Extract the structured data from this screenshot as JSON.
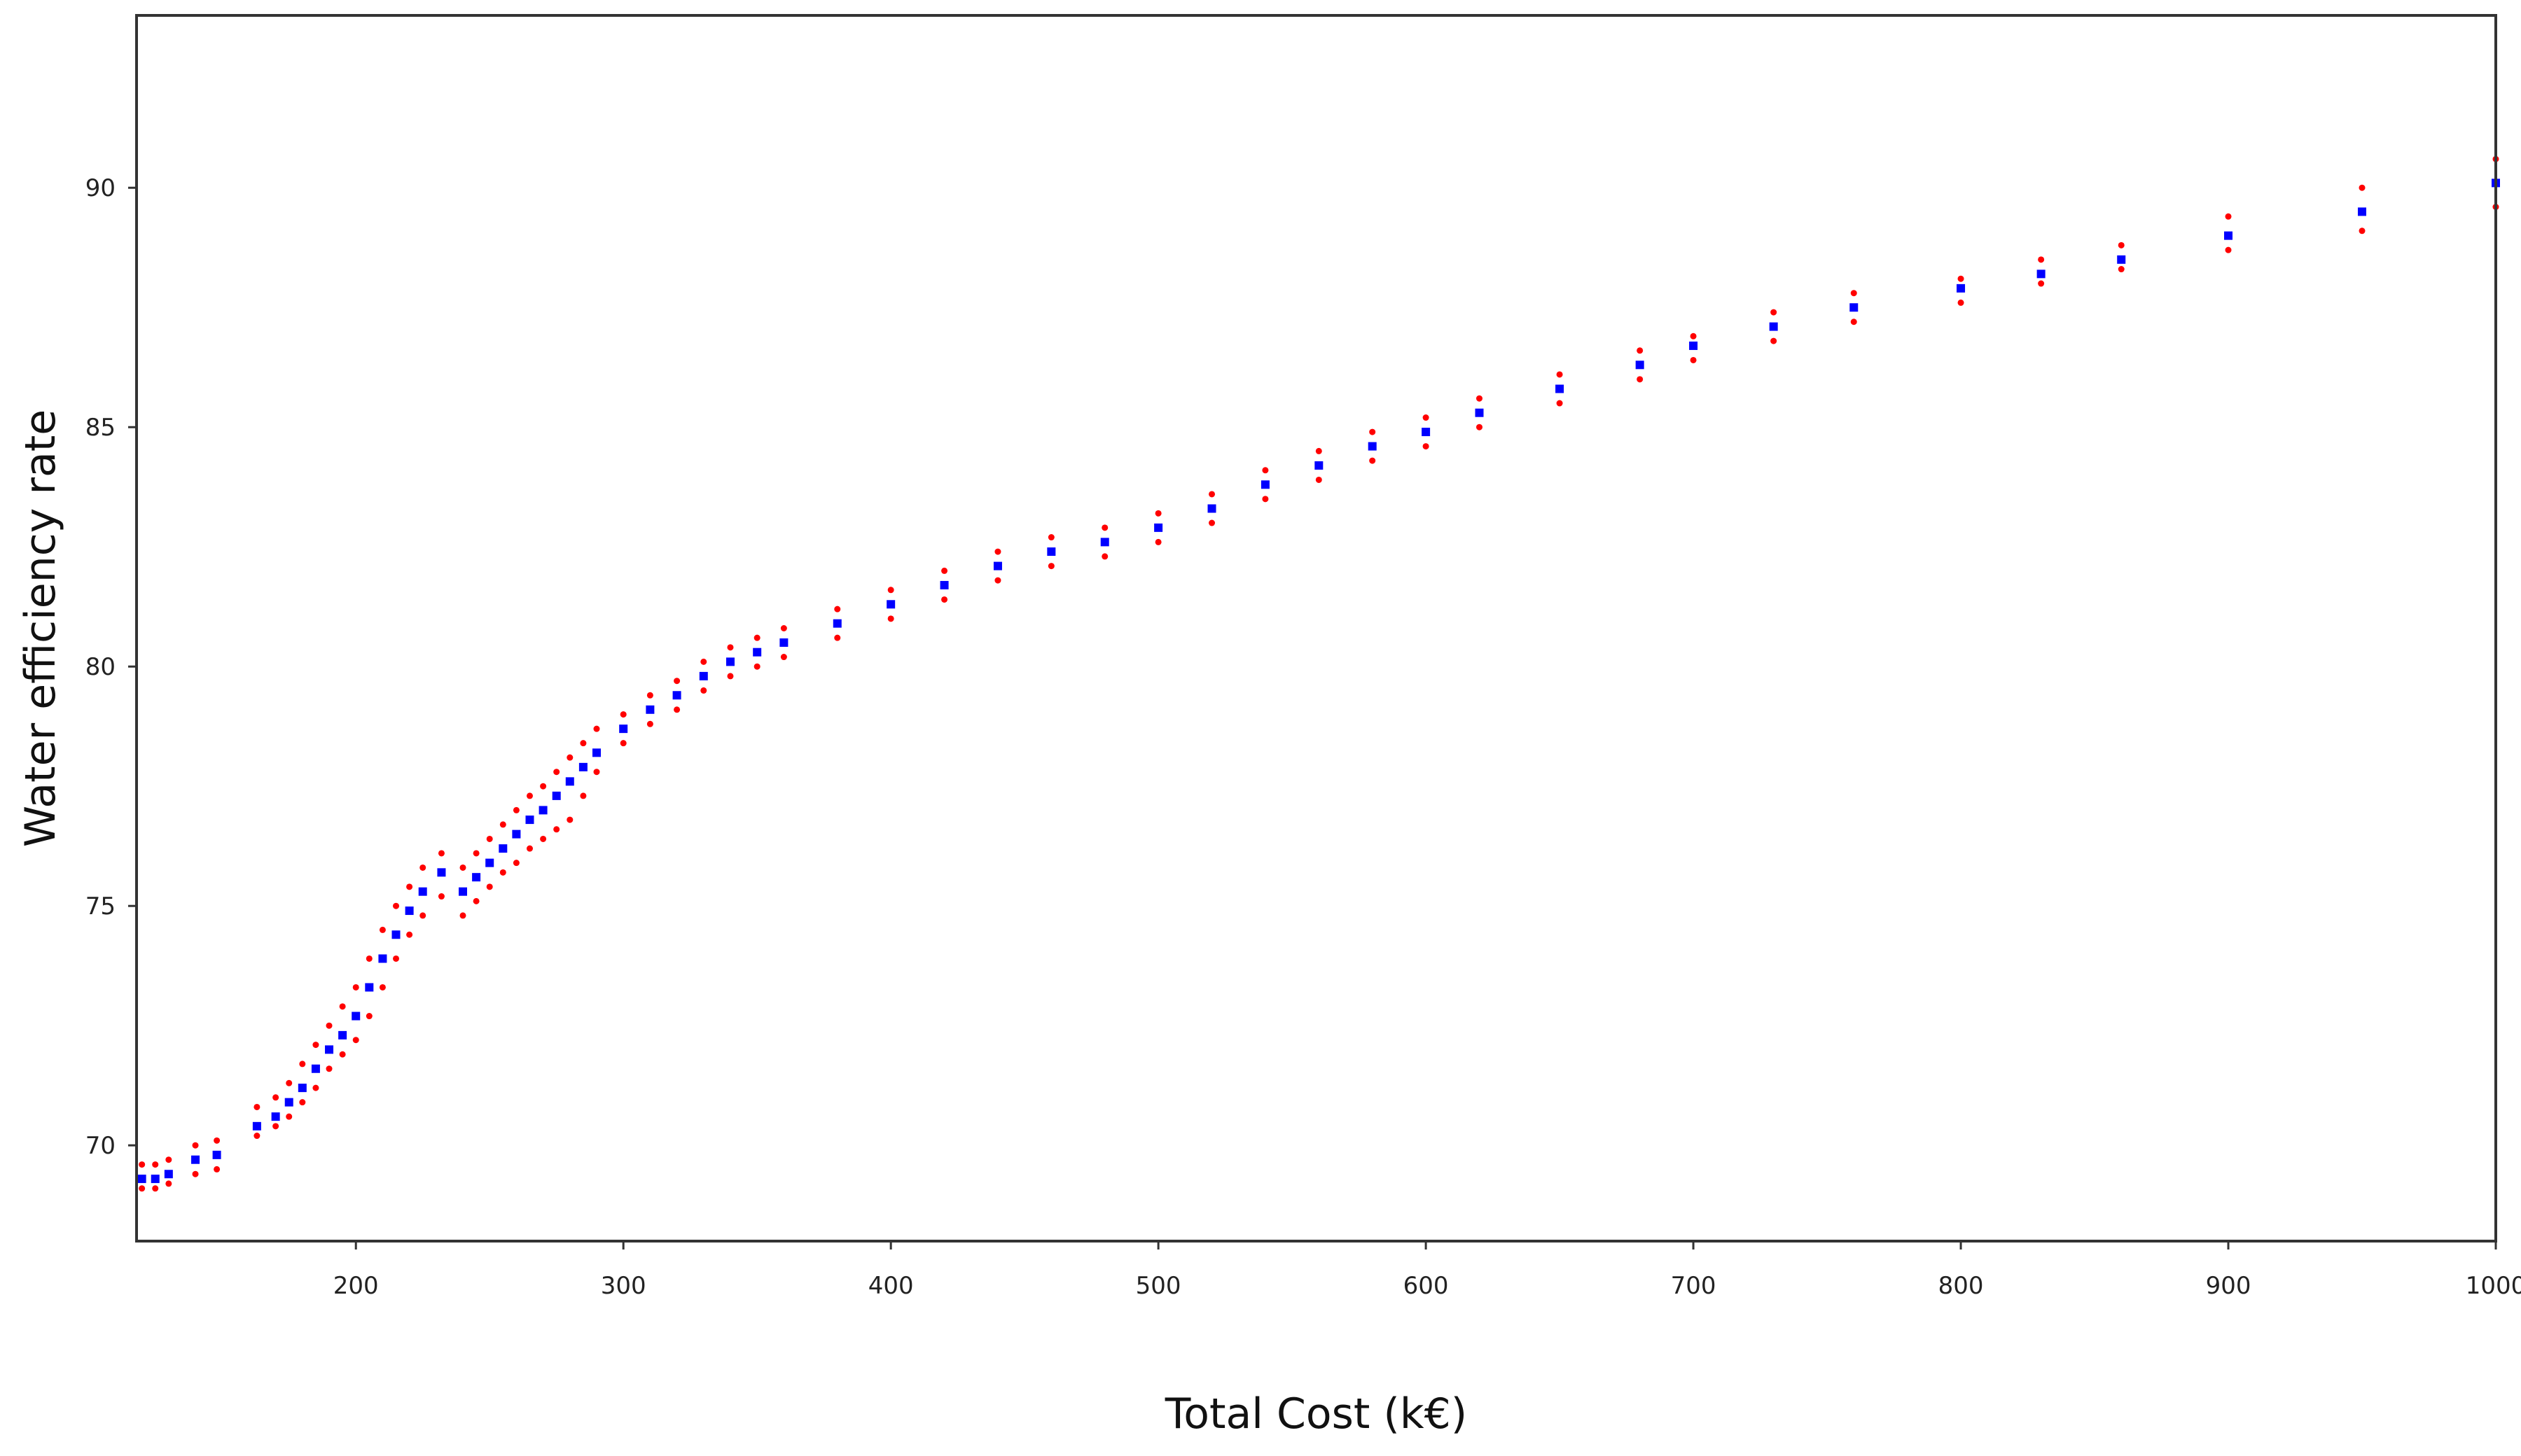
{
  "colors": {
    "background": "#ffffff",
    "frame": "#333333",
    "center_series": "#0000ff",
    "bound_series": "#ff0000"
  },
  "chart_data": {
    "type": "scatter",
    "title": "",
    "xlabel": "Total Cost (k€)",
    "ylabel": "Water efficiency rate",
    "xlim": [
      118,
      1000
    ],
    "ylim": [
      68.0,
      93.6
    ],
    "xticks": [
      200,
      300,
      400,
      500,
      600,
      700,
      800,
      900,
      1000
    ],
    "yticks": [
      70,
      75,
      80,
      85,
      90
    ],
    "grid": false,
    "legend": "none",
    "series": [
      {
        "marker": "square",
        "color": "#0000ff",
        "x": [
          120,
          125,
          130,
          140,
          148,
          163,
          170,
          175,
          180,
          185,
          190,
          195,
          200,
          205,
          210,
          215,
          220,
          225,
          232,
          240,
          245,
          250,
          255,
          260,
          265,
          270,
          275,
          280,
          285,
          290,
          300,
          310,
          320,
          330,
          340,
          350,
          360,
          380,
          400,
          420,
          440,
          460,
          480,
          500,
          520,
          540,
          560,
          580,
          600,
          620,
          650,
          680,
          700,
          730,
          760,
          800,
          830,
          860,
          900,
          950,
          1000
        ],
        "y": [
          69.3,
          69.3,
          69.4,
          69.7,
          69.8,
          70.4,
          70.6,
          70.9,
          71.2,
          71.6,
          72.0,
          72.3,
          72.7,
          73.3,
          73.9,
          74.4,
          74.9,
          75.3,
          75.7,
          75.3,
          75.6,
          75.9,
          76.2,
          76.5,
          76.8,
          77.0,
          77.3,
          77.6,
          77.9,
          78.2,
          78.7,
          79.1,
          79.4,
          79.8,
          80.1,
          80.3,
          80.5,
          80.9,
          81.3,
          81.7,
          82.1,
          82.4,
          82.6,
          82.9,
          83.3,
          83.8,
          84.2,
          84.6,
          84.9,
          85.3,
          85.8,
          86.3,
          86.7,
          87.1,
          87.5,
          87.9,
          88.2,
          88.5,
          89.0,
          89.5,
          90.1
        ]
      },
      {
        "marker": "dot",
        "color": "#ff0000",
        "x": [
          120,
          125,
          130,
          140,
          148,
          163,
          170,
          175,
          180,
          185,
          190,
          195,
          200,
          205,
          210,
          215,
          220,
          225,
          232,
          240,
          245,
          250,
          255,
          260,
          265,
          270,
          275,
          280,
          285,
          290,
          300,
          310,
          320,
          330,
          340,
          350,
          360,
          380,
          400,
          420,
          440,
          460,
          480,
          500,
          520,
          540,
          560,
          580,
          600,
          620,
          650,
          680,
          700,
          730,
          760,
          800,
          830,
          860,
          900,
          950,
          1000
        ],
        "y": [
          69.6,
          69.6,
          69.7,
          70.0,
          70.1,
          70.8,
          71.0,
          71.3,
          71.7,
          72.1,
          72.5,
          72.9,
          73.3,
          73.9,
          74.5,
          75.0,
          75.4,
          75.8,
          76.1,
          75.8,
          76.1,
          76.4,
          76.7,
          77.0,
          77.3,
          77.5,
          77.8,
          78.1,
          78.4,
          78.7,
          79.0,
          79.4,
          79.7,
          80.1,
          80.4,
          80.6,
          80.8,
          81.2,
          81.6,
          82.0,
          82.4,
          82.7,
          82.9,
          83.2,
          83.6,
          84.1,
          84.5,
          84.9,
          85.2,
          85.6,
          86.1,
          86.6,
          86.9,
          87.4,
          87.8,
          88.1,
          88.5,
          88.8,
          89.4,
          90.0,
          90.6
        ]
      },
      {
        "marker": "dot",
        "color": "#ff0000",
        "x": [
          120,
          125,
          130,
          140,
          148,
          163,
          170,
          175,
          180,
          185,
          190,
          195,
          200,
          205,
          210,
          215,
          220,
          225,
          232,
          240,
          245,
          250,
          255,
          260,
          265,
          270,
          275,
          280,
          285,
          290,
          300,
          310,
          320,
          330,
          340,
          350,
          360,
          380,
          400,
          420,
          440,
          460,
          480,
          500,
          520,
          540,
          560,
          580,
          600,
          620,
          650,
          680,
          700,
          730,
          760,
          800,
          830,
          860,
          900,
          950,
          1000
        ],
        "y": [
          69.1,
          69.1,
          69.2,
          69.4,
          69.5,
          70.2,
          70.4,
          70.6,
          70.9,
          71.2,
          71.6,
          71.9,
          72.2,
          72.7,
          73.3,
          73.9,
          74.4,
          74.8,
          75.2,
          74.8,
          75.1,
          75.4,
          75.7,
          75.9,
          76.2,
          76.4,
          76.6,
          76.8,
          77.3,
          77.8,
          78.4,
          78.8,
          79.1,
          79.5,
          79.8,
          80.0,
          80.2,
          80.6,
          81.0,
          81.4,
          81.8,
          82.1,
          82.3,
          82.6,
          83.0,
          83.5,
          83.9,
          84.3,
          84.6,
          85.0,
          85.5,
          86.0,
          86.4,
          86.8,
          87.2,
          87.6,
          88.0,
          88.3,
          88.7,
          89.1,
          89.6
        ]
      }
    ]
  }
}
